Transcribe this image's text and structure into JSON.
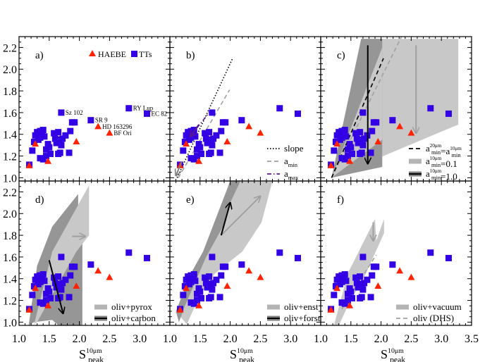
{
  "chart_data": {
    "type": "scatter",
    "xlabel": {
      "base": "S",
      "sub": "peak",
      "sup": "10μm"
    },
    "xlim": [
      1.0,
      3.5
    ],
    "ylim": [
      0.97,
      2.3
    ],
    "xticks": [
      "1.0",
      "1.5",
      "2.0",
      "2.5",
      "3.0",
      "3.5"
    ],
    "xtick_values": [
      1.0,
      1.5,
      2.0,
      2.5,
      3.0,
      3.5
    ],
    "yticks": [
      "1.0",
      "1.2",
      "1.4",
      "1.6",
      "1.8",
      "2.0",
      "2.2"
    ],
    "ytick_values": [
      1.0,
      1.2,
      1.4,
      1.6,
      1.8,
      2.0,
      2.2
    ],
    "grid": false,
    "colors": {
      "TTs": "#3300e6",
      "HAEBE": "#ff2200",
      "light": "#c8c8c8",
      "dark": "#969696",
      "purple": "#5a1a8c",
      "gray": "#a0a0a0"
    },
    "series": [
      {
        "name": "TTs",
        "marker": "square",
        "points": [
          [
            1.17,
            1.12
          ],
          [
            1.22,
            1.25
          ],
          [
            1.25,
            1.33
          ],
          [
            1.27,
            1.39
          ],
          [
            1.3,
            1.42
          ],
          [
            1.33,
            1.4
          ],
          [
            1.35,
            1.43
          ],
          [
            1.35,
            1.37
          ],
          [
            1.32,
            1.35
          ],
          [
            1.38,
            1.42
          ],
          [
            1.4,
            1.44
          ],
          [
            1.42,
            1.38
          ],
          [
            1.35,
            1.18
          ],
          [
            1.4,
            1.17
          ],
          [
            1.45,
            1.2
          ],
          [
            1.45,
            1.26
          ],
          [
            1.5,
            1.28
          ],
          [
            1.48,
            1.31
          ],
          [
            1.52,
            1.22
          ],
          [
            1.58,
            1.41
          ],
          [
            1.6,
            1.36
          ],
          [
            1.62,
            1.32
          ],
          [
            1.65,
            1.42
          ],
          [
            1.68,
            1.35
          ],
          [
            1.7,
            1.3
          ],
          [
            1.65,
            1.22
          ],
          [
            1.68,
            1.23
          ],
          [
            1.72,
            1.36
          ],
          [
            1.77,
            1.39
          ],
          [
            1.7,
            1.6
          ],
          [
            1.85,
            1.43
          ],
          [
            1.88,
            1.51
          ],
          [
            1.92,
            1.51
          ],
          [
            1.83,
            1.23
          ],
          [
            2.19,
            1.53
          ],
          [
            2.82,
            1.64
          ],
          [
            3.12,
            1.59
          ]
        ]
      },
      {
        "name": "HAEBE",
        "marker": "triangle",
        "points": [
          [
            1.17,
            1.11
          ],
          [
            1.27,
            1.31
          ],
          [
            1.48,
            1.15
          ],
          [
            1.95,
            1.33
          ],
          [
            2.31,
            1.47
          ],
          [
            2.5,
            1.41
          ]
        ]
      }
    ],
    "point_labels": [
      {
        "text": "Sz 102",
        "x": 1.7,
        "y": 1.6
      },
      {
        "text": "SR 9",
        "x": 2.19,
        "y": 1.53
      },
      {
        "text": "HD 163296",
        "x": 2.31,
        "y": 1.47
      },
      {
        "text": "BF Ori",
        "x": 2.5,
        "y": 1.41
      },
      {
        "text": "RY Lup",
        "x": 2.82,
        "y": 1.64
      },
      {
        "text": "EC 82",
        "x": 3.12,
        "y": 1.59
      }
    ],
    "panels": [
      {
        "label": "a)",
        "legend": [
          {
            "text": "HAEBE",
            "marker": "triangle"
          },
          {
            "text": "TTs",
            "marker": "square"
          }
        ],
        "show_point_labels": true,
        "polygons": [],
        "lines": [],
        "arrows": []
      },
      {
        "label": "b)",
        "legend": [
          {
            "base": "slope",
            "sub": "",
            "sup": "",
            "style": "dotted",
            "color": "#000000"
          },
          {
            "base": "a",
            "sub": "min",
            "sup": "",
            "style": "dashed",
            "color": "#a0a0a0"
          },
          {
            "base": "a",
            "sub": "max",
            "sup": "",
            "style": "dashdot",
            "color": "#5a1a8c"
          }
        ],
        "polygons": [],
        "lines": [
          {
            "style": "dotted",
            "color": "#000000",
            "points": [
              [
                1.12,
                1.0
              ],
              [
                2.04,
                2.1
              ]
            ]
          },
          {
            "style": "dashed",
            "color": "#a0a0a0",
            "points": [
              [
                1.14,
                1.0
              ],
              [
                1.99,
                1.81
              ]
            ]
          },
          {
            "style": "dashdot",
            "color": "#5a1a8c",
            "points": [
              [
                1.35,
                1.39
              ],
              [
                1.68,
                1.62
              ]
            ]
          }
        ],
        "arrows": [
          {
            "color": "#5a1a8c",
            "from": [
              1.48,
              1.49
            ],
            "to": [
              1.34,
              1.38
            ]
          },
          {
            "color": "#808080",
            "from": [
              1.2,
              1.15
            ],
            "to": [
              1.1,
              1.02
            ]
          }
        ]
      },
      {
        "label": "c)",
        "legend": [
          {
            "base": "a",
            "sub": "min",
            "sup": "20μm",
            "tail": "=a",
            "sub2": "min",
            "sup2": "10μm",
            "style": "dashed",
            "color": "#000000"
          },
          {
            "base": "a",
            "sub": "min",
            "sup": "10μm",
            "tail": "=0.1",
            "style": "band",
            "color": "#b4b4b4"
          },
          {
            "base": "a",
            "sub": "min",
            "sup": "10μm",
            "tail": "=1.0",
            "style": "band",
            "color": "#000000",
            "band": "#808080"
          }
        ],
        "polygons": [
          {
            "shade": "light",
            "points": [
              [
                1.18,
                1.0
              ],
              [
                2.0,
                2.28
              ],
              [
                3.28,
                2.28
              ],
              [
                3.28,
                1.49
              ]
            ]
          },
          {
            "shade": "dark",
            "points": [
              [
                1.18,
                1.0
              ],
              [
                1.67,
                2.28
              ],
              [
                2.02,
                2.28
              ],
              [
                2.02,
                1.1
              ]
            ]
          },
          {
            "shade": "light",
            "points": [
              [
                1.18,
                1.0
              ],
              [
                2.02,
                2.2
              ],
              [
                2.02,
                1.35
              ]
            ]
          }
        ],
        "lines": [
          {
            "style": "dashed",
            "color": "#a0a0a0",
            "points": [
              [
                1.18,
                1.0
              ],
              [
                2.34,
                2.3
              ]
            ]
          },
          {
            "style": "dashed",
            "color": "#000000",
            "points": [
              [
                1.18,
                1.0
              ],
              [
                2.04,
                2.1
              ]
            ]
          }
        ],
        "arrows": [
          {
            "color": "#000000",
            "from": [
              1.78,
              2.22
            ],
            "to": [
              1.78,
              1.13
            ]
          },
          {
            "color": "#a0a0a0",
            "from": [
              2.58,
              2.22
            ],
            "to": [
              2.58,
              1.41
            ]
          }
        ]
      },
      {
        "label": "d)",
        "legend": [
          {
            "base": "oliv+pyrox",
            "style": "band",
            "color": "#b4b4b4"
          },
          {
            "base": "oliv+carbon",
            "style": "band",
            "color": "#000000",
            "band": "#808080"
          }
        ],
        "polygons": [
          {
            "shade": "dark",
            "points": [
              [
                1.16,
                0.97
              ],
              [
                1.3,
                1.52
              ],
              [
                1.55,
                1.88
              ],
              [
                1.98,
                2.18
              ],
              [
                1.98,
                1.75
              ],
              [
                2.05,
                1.72
              ],
              [
                2.05,
                0.97
              ],
              [
                1.65,
                0.97
              ],
              [
                1.55,
                1.02
              ],
              [
                1.25,
                1.0
              ]
            ]
          },
          {
            "shade": "light",
            "points": [
              [
                1.25,
                0.98
              ],
              [
                1.55,
                1.65
              ],
              [
                1.85,
                1.95
              ],
              [
                2.16,
                2.26
              ],
              [
                2.16,
                1.8
              ],
              [
                1.95,
                1.65
              ],
              [
                1.6,
                1.3
              ],
              [
                1.3,
                1.0
              ]
            ]
          }
        ],
        "lines": [],
        "arrows": [
          {
            "color": "#000000",
            "from": [
              1.5,
              1.57
            ],
            "to": [
              1.73,
              1.08
            ]
          },
          {
            "color": "#a0a0a0",
            "from": [
              1.88,
              1.79
            ],
            "to": [
              2.1,
              1.79
            ]
          }
        ]
      },
      {
        "label": "e)",
        "legend": [
          {
            "base": "oliv+enst",
            "style": "band",
            "color": "#b4b4b4"
          },
          {
            "base": "oliv+forst",
            "style": "band",
            "color": "#000000",
            "band": "#808080"
          }
        ],
        "polygons": [
          {
            "shade": "light",
            "points": [
              [
                1.1,
                1.1
              ],
              [
                1.55,
                1.62
              ],
              [
                2.0,
                2.3
              ],
              [
                2.7,
                2.3
              ],
              [
                2.52,
                1.92
              ],
              [
                2.2,
                1.65
              ],
              [
                1.75,
                1.45
              ],
              [
                1.5,
                1.25
              ],
              [
                1.28,
                0.98
              ]
            ]
          },
          {
            "shade": "dark",
            "points": [
              [
                1.1,
                1.1
              ],
              [
                1.35,
                1.45
              ],
              [
                1.55,
                1.65
              ],
              [
                2.0,
                2.3
              ],
              [
                2.17,
                2.3
              ],
              [
                2.0,
                2.1
              ],
              [
                1.9,
                1.9
              ],
              [
                1.6,
                1.6
              ],
              [
                1.25,
                1.15
              ],
              [
                1.15,
                1.0
              ]
            ]
          }
        ],
        "lines": [],
        "arrows": [
          {
            "color": "#a0a0a0",
            "from": [
              1.85,
              1.8
            ],
            "to": [
              2.5,
              2.16
            ]
          },
          {
            "color": "#000000",
            "from": [
              1.85,
              1.8
            ],
            "to": [
              2.0,
              2.1
            ]
          }
        ]
      },
      {
        "label": "f)",
        "legend": [
          {
            "base": "oliv+vacuum",
            "style": "band",
            "color": "#b4b4b4"
          },
          {
            "base": "oliv (DHS)",
            "style": "dashed",
            "color": "#a0a0a0"
          }
        ],
        "polygons": [
          {
            "shade": "light",
            "points": [
              [
                1.22,
                0.97
              ],
              [
                1.45,
                1.45
              ],
              [
                1.9,
                1.95
              ],
              [
                1.92,
                1.75
              ],
              [
                2.05,
                1.95
              ],
              [
                2.05,
                1.82
              ],
              [
                1.75,
                1.45
              ],
              [
                1.45,
                1.15
              ],
              [
                1.3,
                0.97
              ]
            ]
          }
        ],
        "lines": [
          {
            "style": "dashed",
            "color": "#a0a0a0",
            "points": [
              [
                1.35,
                1.12
              ],
              [
                1.92,
                1.62
              ]
            ]
          }
        ],
        "arrows": [
          {
            "color": "#a0a0a0",
            "from": [
              1.87,
              1.92
            ],
            "to": [
              1.87,
              1.75
            ]
          }
        ]
      }
    ]
  }
}
